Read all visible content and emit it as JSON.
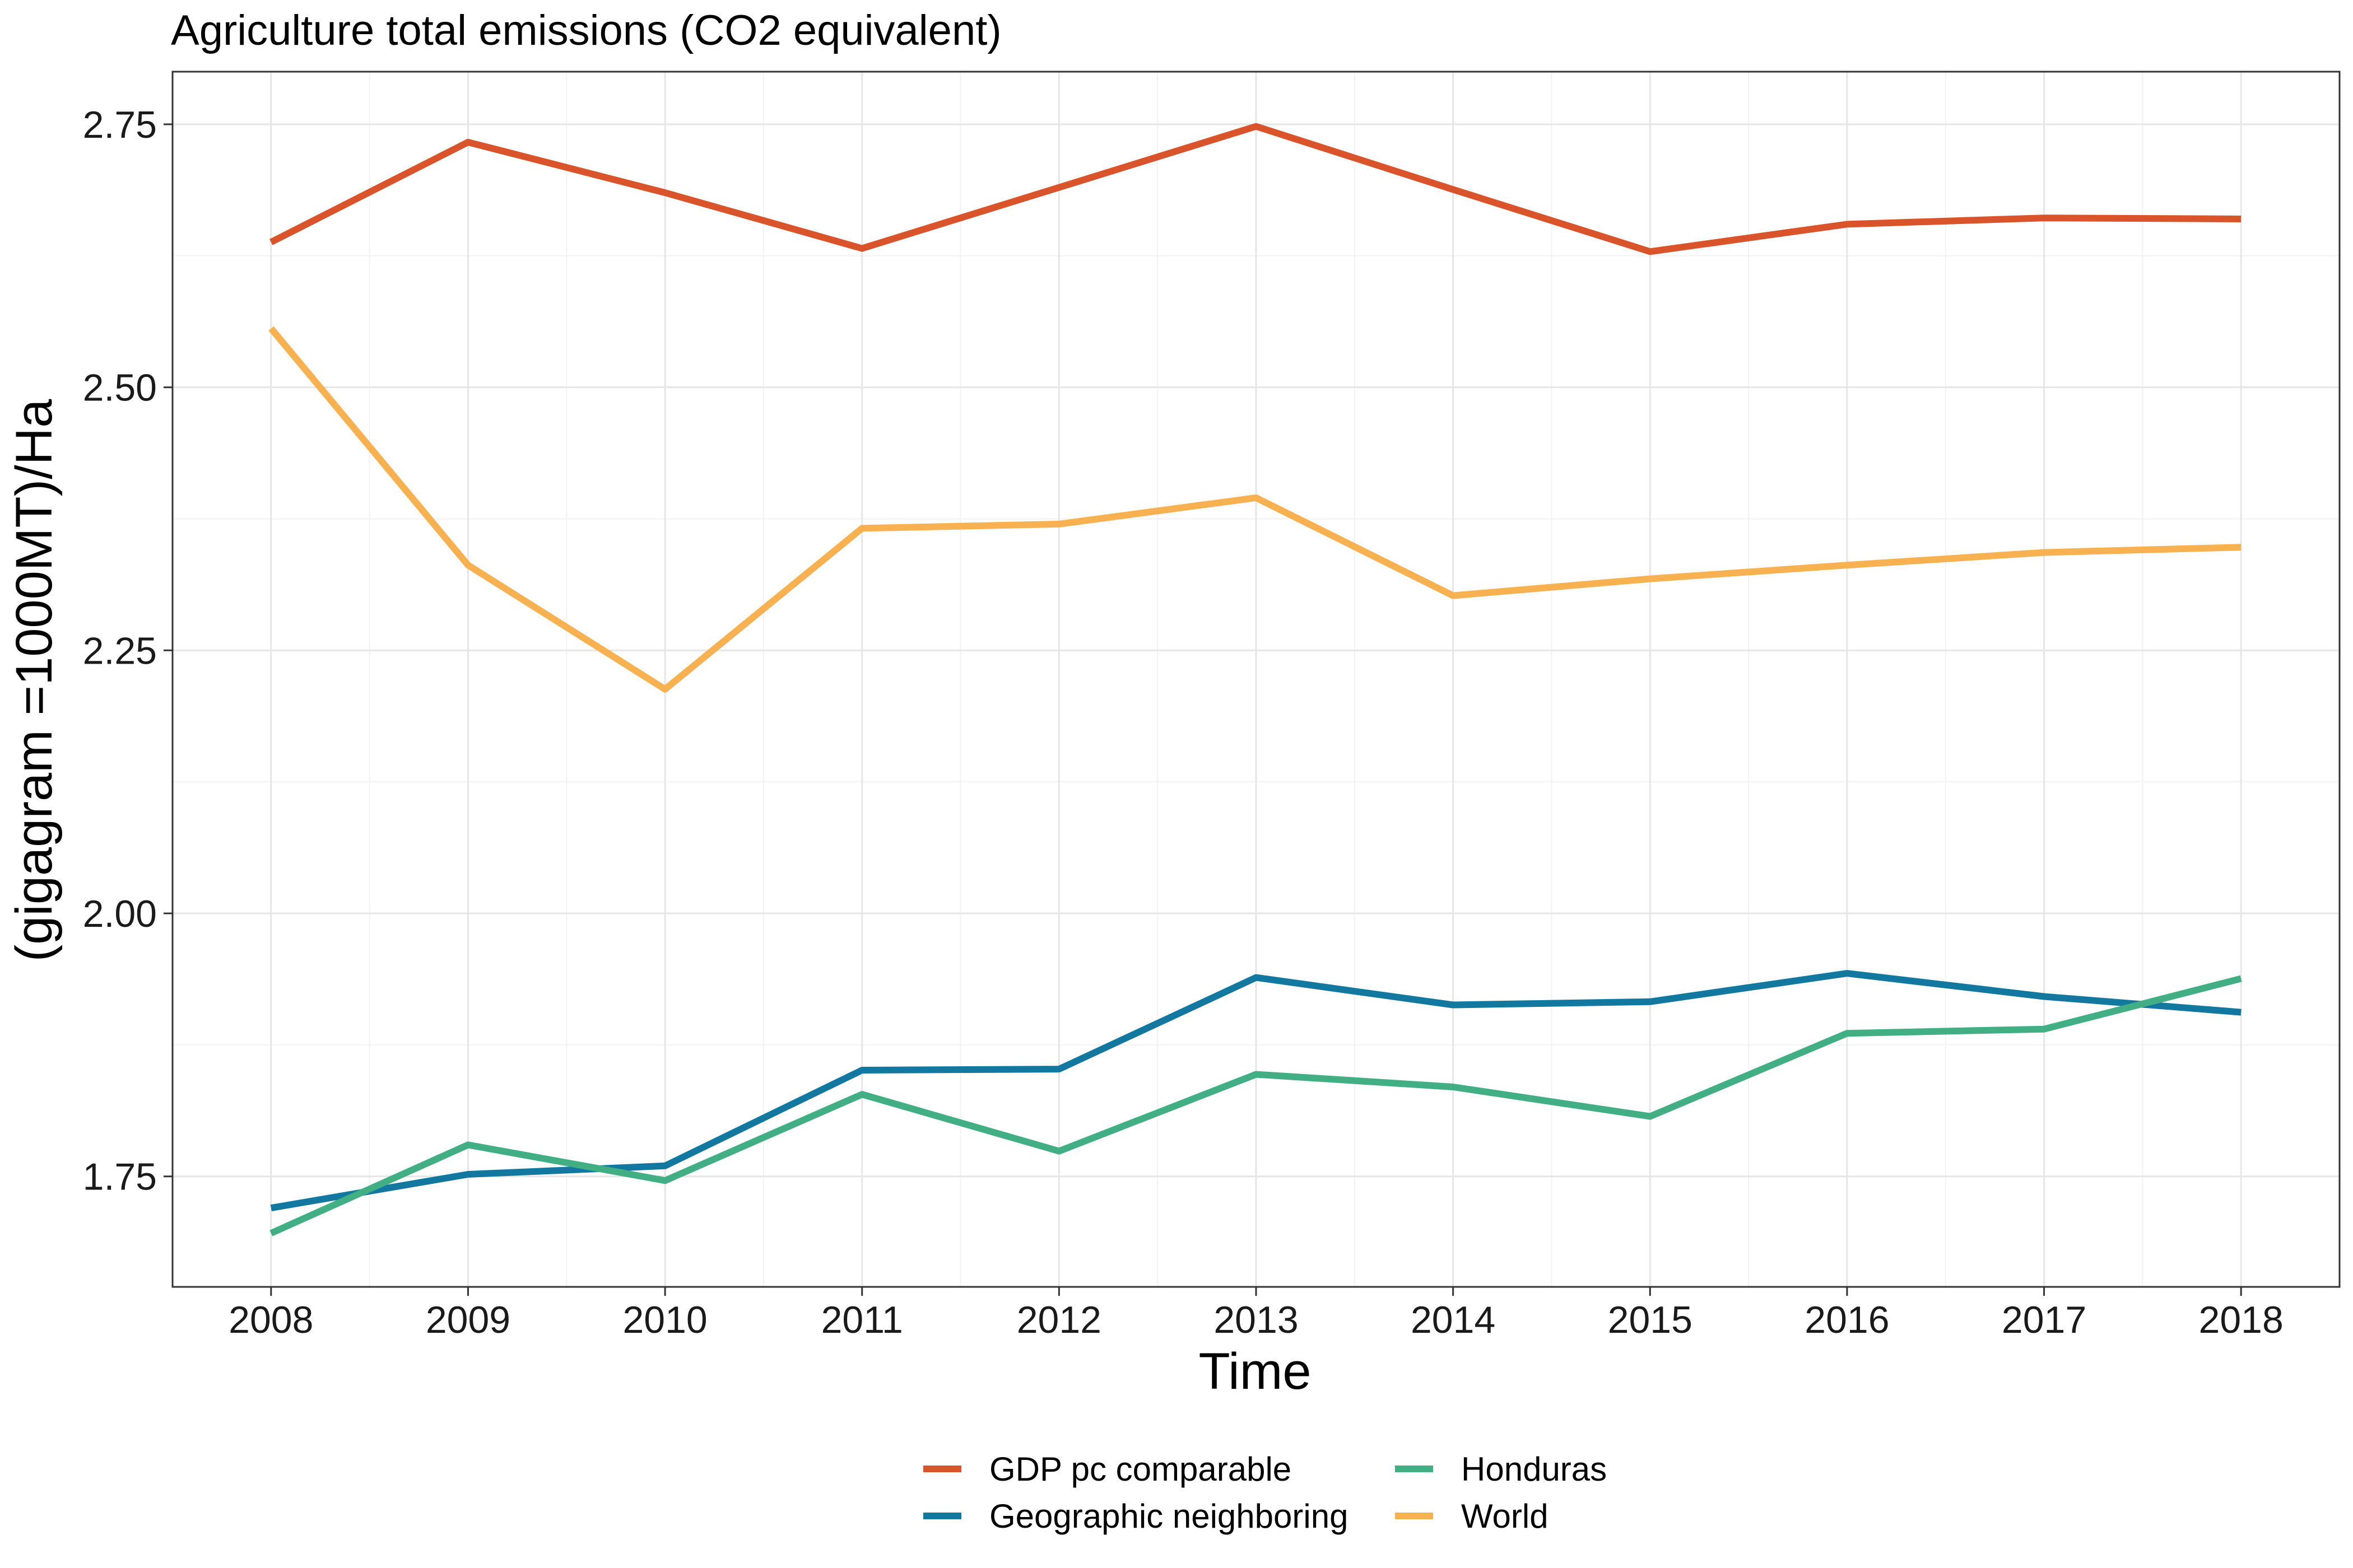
{
  "chart_data": {
    "type": "line",
    "title": "Agriculture total emissions (CO2 equivalent)",
    "xlabel": "Time",
    "ylabel": "(gigagram =1000MT)/Ha",
    "x": [
      2008,
      2009,
      2010,
      2011,
      2012,
      2013,
      2014,
      2015,
      2016,
      2017,
      2018
    ],
    "xlim": [
      2007.5,
      2018.5
    ],
    "ylim": [
      1.645,
      2.8
    ],
    "yticks": [
      1.75,
      2.0,
      2.25,
      2.5,
      2.75
    ],
    "ytick_labels": [
      "1.75",
      "2.00",
      "2.25",
      "2.50",
      "2.75"
    ],
    "xtick_labels": [
      "2008",
      "2009",
      "2010",
      "2011",
      "2012",
      "2013",
      "2014",
      "2015",
      "2016",
      "2017",
      "2018"
    ],
    "grid": true,
    "legend_position": "bottom",
    "series": [
      {
        "name": "GDP pc comparable",
        "color": "#D9532B",
        "values": [
          2.638,
          2.733,
          2.685,
          2.632,
          2.69,
          2.748,
          2.688,
          2.629,
          2.655,
          2.661,
          2.66
        ]
      },
      {
        "name": "Geographic neighboring",
        "color": "#1378A0",
        "values": [
          1.72,
          1.752,
          1.76,
          1.851,
          1.852,
          1.939,
          1.913,
          1.916,
          1.943,
          1.921,
          1.906
        ]
      },
      {
        "name": "Honduras",
        "color": "#41AE83",
        "values": [
          1.696,
          1.78,
          1.746,
          1.828,
          1.774,
          1.847,
          1.835,
          1.807,
          1.886,
          1.89,
          1.938
        ]
      },
      {
        "name": "World",
        "color": "#F7B150",
        "values": [
          2.556,
          2.331,
          2.213,
          2.366,
          2.37,
          2.395,
          2.302,
          2.318,
          2.331,
          2.343,
          2.348
        ]
      }
    ],
    "legend_order": [
      0,
      1,
      2,
      3
    ]
  }
}
